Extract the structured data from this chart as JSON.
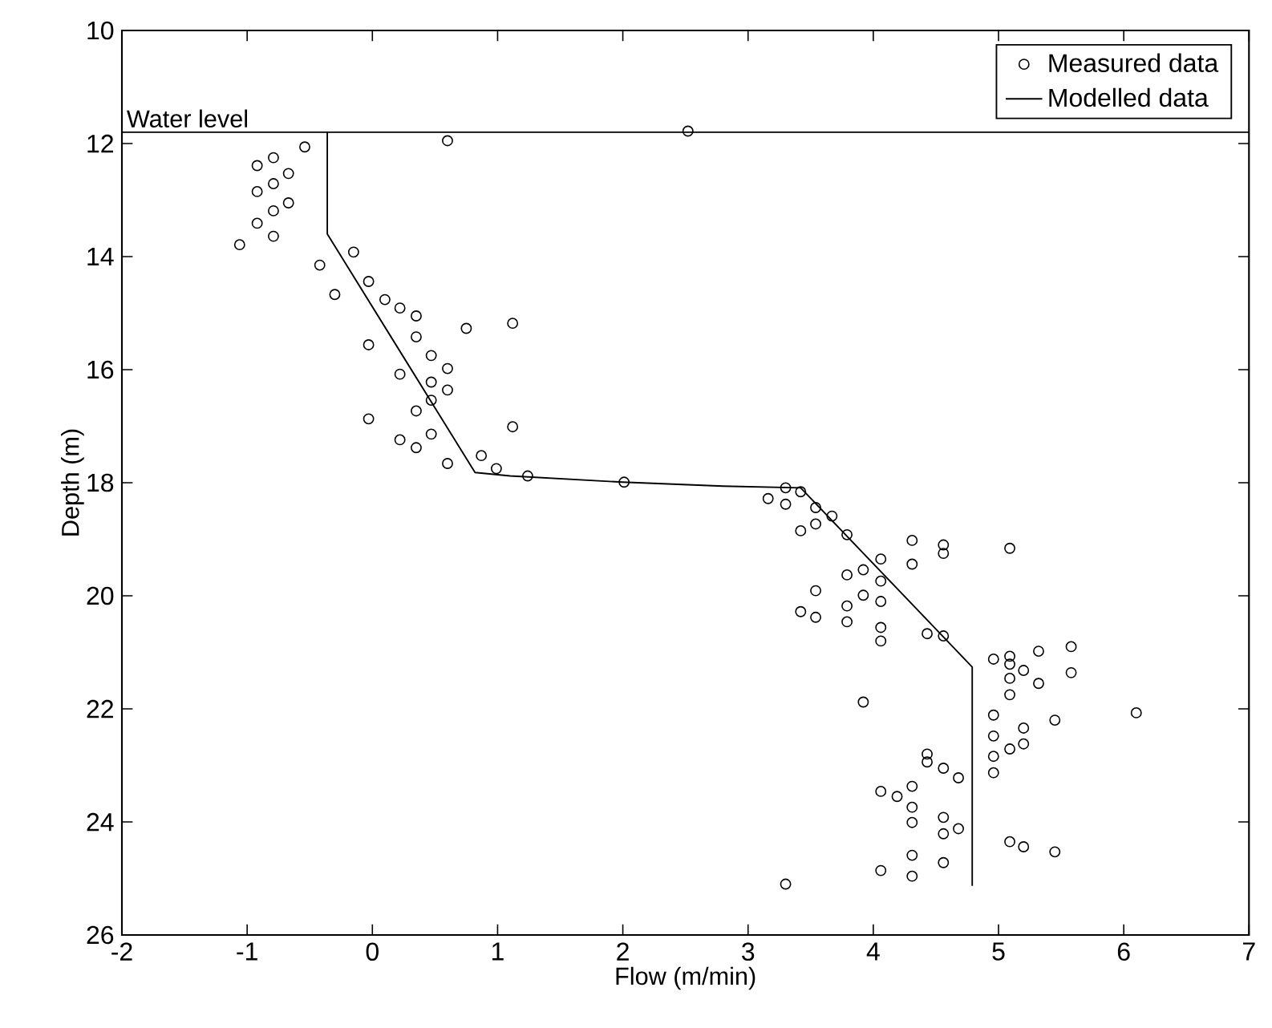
{
  "chart_data": {
    "type": "scatter",
    "xlabel": "Flow (m/min)",
    "ylabel": "Depth (m)",
    "xlim": [
      -2,
      7
    ],
    "ylim": [
      26,
      10
    ],
    "xticks": [
      -2,
      -1,
      0,
      1,
      2,
      3,
      4,
      5,
      6,
      7
    ],
    "yticks": [
      10,
      12,
      14,
      16,
      18,
      20,
      22,
      24,
      26
    ],
    "legend": "top right",
    "ref_lines": [
      {
        "axis": "y",
        "value": 11.8,
        "label": "Water level",
        "color": "#000000"
      }
    ],
    "series": [
      {
        "name": "Measured data",
        "marker": "circle",
        "color": "#000000",
        "x": [
          0.6,
          2.52,
          -0.54,
          -0.79,
          -0.92,
          -0.67,
          -0.79,
          -0.92,
          -0.67,
          -0.79,
          -0.92,
          -0.79,
          -1.06,
          -0.15,
          -0.42,
          -0.3,
          -0.03,
          0.1,
          0.22,
          0.35,
          0.35,
          -0.03,
          0.75,
          1.12,
          0.47,
          0.6,
          0.22,
          0.47,
          0.6,
          0.47,
          0.35,
          -0.03,
          1.12,
          0.22,
          0.35,
          0.47,
          0.6,
          0.87,
          0.99,
          1.24,
          2.01,
          3.3,
          3.42,
          3.16,
          3.3,
          3.54,
          3.67,
          3.54,
          3.42,
          3.79,
          4.31,
          4.56,
          4.56,
          5.09,
          4.06,
          4.31,
          3.92,
          3.79,
          4.06,
          3.54,
          3.92,
          4.06,
          3.79,
          3.42,
          3.54,
          3.79,
          4.06,
          4.06,
          4.43,
          4.56,
          5.58,
          5.32,
          4.96,
          5.09,
          5.09,
          5.2,
          5.58,
          5.09,
          5.32,
          5.09,
          3.92,
          6.1,
          4.96,
          5.45,
          5.2,
          4.96,
          5.2,
          5.09,
          4.96,
          4.43,
          4.43,
          4.56,
          4.68,
          4.96,
          4.31,
          4.06,
          4.19,
          4.31,
          4.56,
          4.68,
          4.31,
          4.56,
          5.09,
          5.2,
          5.45,
          4.31,
          4.56,
          4.06,
          4.31,
          3.3
        ],
        "values": [
          11.95,
          11.78,
          12.06,
          12.25,
          12.39,
          12.53,
          12.71,
          12.85,
          13.05,
          13.19,
          13.41,
          13.64,
          13.79,
          13.92,
          14.15,
          14.67,
          14.44,
          14.76,
          14.91,
          15.05,
          15.42,
          15.56,
          15.27,
          15.18,
          15.75,
          15.98,
          16.08,
          16.22,
          16.36,
          16.54,
          16.73,
          16.87,
          17.01,
          17.24,
          17.38,
          17.14,
          17.66,
          17.52,
          17.75,
          17.88,
          17.99,
          18.09,
          18.16,
          18.28,
          18.38,
          18.44,
          18.59,
          18.73,
          18.85,
          18.92,
          19.02,
          19.1,
          19.25,
          19.16,
          19.35,
          19.44,
          19.54,
          19.63,
          19.74,
          19.91,
          19.99,
          20.1,
          20.18,
          20.28,
          20.38,
          20.46,
          20.56,
          20.8,
          20.67,
          20.71,
          20.9,
          20.98,
          21.12,
          21.07,
          21.21,
          21.32,
          21.36,
          21.46,
          21.55,
          21.75,
          21.88,
          22.07,
          22.11,
          22.2,
          22.34,
          22.48,
          22.62,
          22.71,
          22.84,
          22.8,
          22.94,
          23.05,
          23.22,
          23.13,
          23.37,
          23.46,
          23.55,
          23.74,
          23.92,
          24.12,
          24.01,
          24.21,
          24.35,
          24.44,
          24.53,
          24.59,
          24.72,
          24.86,
          24.96,
          25.1
        ]
      },
      {
        "name": "Modelled data",
        "type": "line",
        "marker": "none",
        "color": "#000000",
        "x": [
          -0.36,
          -0.36,
          0.82,
          1.1,
          2.0,
          2.8,
          3.42,
          4.79,
          4.79
        ],
        "values": [
          11.8,
          13.6,
          17.82,
          17.88,
          17.99,
          18.06,
          18.09,
          21.26,
          25.13
        ]
      }
    ]
  }
}
